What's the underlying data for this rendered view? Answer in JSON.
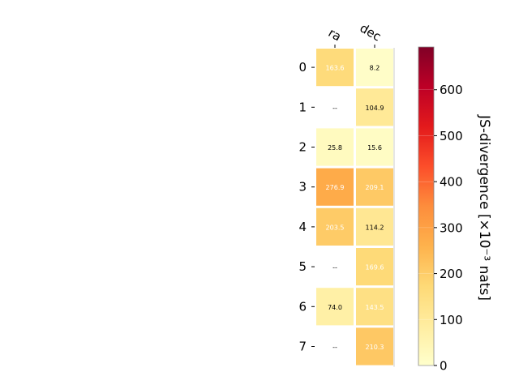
{
  "chart_data": {
    "type": "heatmap",
    "columns": [
      "ra",
      "dec"
    ],
    "rows": [
      "0",
      "1",
      "2",
      "3",
      "4",
      "5",
      "6",
      "7"
    ],
    "values": [
      [
        163.6,
        8.2
      ],
      [
        null,
        104.9
      ],
      [
        25.8,
        15.6
      ],
      [
        276.9,
        209.1
      ],
      [
        203.5,
        114.2
      ],
      [
        null,
        169.6
      ],
      [
        74.0,
        143.5
      ],
      [
        null,
        210.3
      ]
    ],
    "cell_labels": [
      [
        "163.6",
        "8.2"
      ],
      [
        "--",
        "104.9"
      ],
      [
        "25.8",
        "15.6"
      ],
      [
        "276.9",
        "209.1"
      ],
      [
        "203.5",
        "114.2"
      ],
      [
        "--",
        "169.6"
      ],
      [
        "74.0",
        "143.5"
      ],
      [
        "--",
        "210.3"
      ]
    ],
    "colorbar": {
      "label": "JS-divergence [×10⁻³ nats]",
      "ticks": [
        0,
        100,
        200,
        300,
        400,
        500,
        600
      ],
      "range": [
        0,
        693
      ],
      "colormap": "YlOrRd"
    },
    "grid": false
  }
}
